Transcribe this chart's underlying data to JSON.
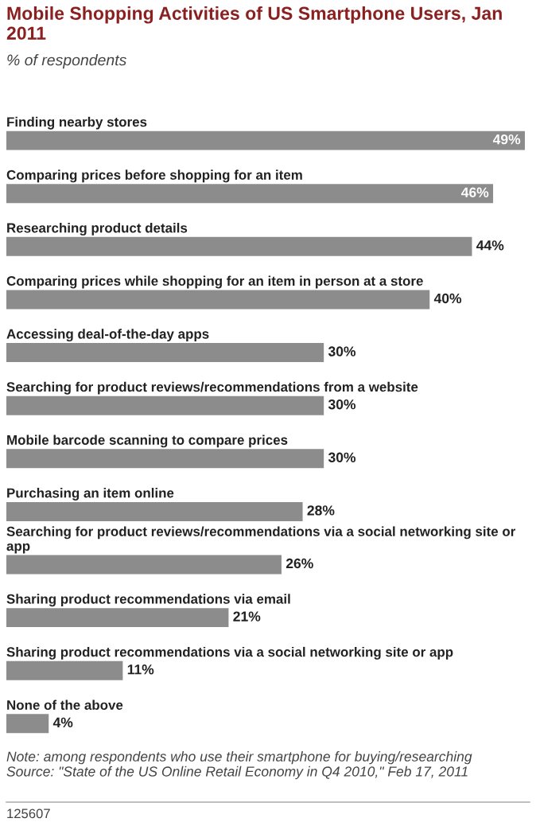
{
  "chart_data": {
    "type": "bar",
    "orientation": "horizontal",
    "title": "Mobile Shopping Activities of US Smartphone Users, Jan 2011",
    "subtitle": "% of respondents",
    "categories": [
      "Finding nearby stores",
      "Comparing prices before shopping for an item",
      "Researching product details",
      "Comparing prices while shopping for an item in person at a store",
      "Accessing deal-of-the-day apps",
      "Searching for product reviews/recommendations from a website",
      "Mobile barcode scanning to compare prices",
      "Purchasing an item online",
      "Searching for product reviews/recommendations via a social networking site or app",
      "Sharing product recommendations via email",
      "Sharing product recommendations via a social networking site or app",
      "None of the above"
    ],
    "values": [
      49,
      46,
      44,
      40,
      30,
      30,
      30,
      28,
      26,
      21,
      11,
      4
    ],
    "value_labels": [
      "49%",
      "46%",
      "44%",
      "40%",
      "30%",
      "30%",
      "30%",
      "28%",
      "26%",
      "21%",
      "11%",
      "4%"
    ],
    "color": "#8c8c8c",
    "xlim": [
      0,
      49
    ],
    "annotations": [
      "Note: among respondents who use their smartphone for buying/researching",
      "Source: \"State of the US Online Retail Economy in Q4 2010,\" Feb 17, 2011",
      "125607"
    ]
  }
}
